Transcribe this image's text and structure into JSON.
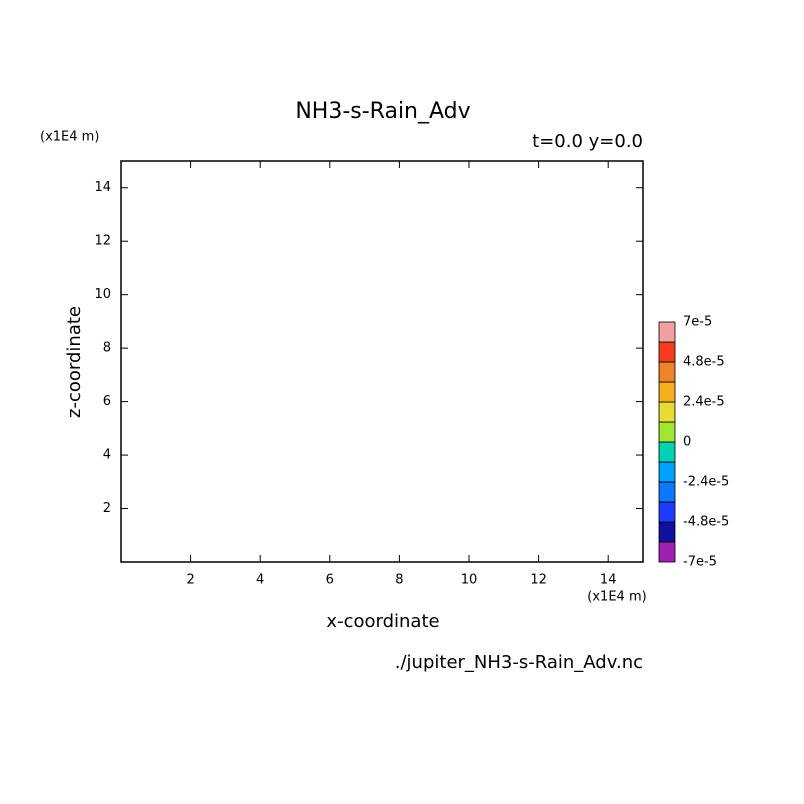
{
  "chart_data": {
    "type": "contour",
    "title": "NH3-s-Rain_Adv",
    "subtitle": "t=0.0 y=0.0",
    "x_label": "x-coordinate",
    "y_label": "z-coordinate",
    "x_unit": "(x1E4 m)",
    "y_unit": "(x1E4 m)",
    "source": "./jupiter_NH3-s-Rain_Adv.nc",
    "xlim": [
      0,
      15
    ],
    "ylim": [
      0,
      15
    ],
    "xticks": [
      2,
      4,
      6,
      8,
      10,
      12,
      14
    ],
    "yticks": [
      2,
      4,
      6,
      8,
      10,
      12,
      14
    ],
    "colorbar": {
      "levels": [
        {
          "value": -7e-05,
          "label": "-7e-5"
        },
        {
          "value": -4.8e-05,
          "label": "-4.8e-5"
        },
        {
          "value": -2.4e-05,
          "label": "-2.4e-5"
        },
        0,
        {
          "value": 2.4e-05,
          "label": "2.4e-5"
        },
        {
          "value": 4.8e-05,
          "label": "4.8e-5"
        },
        {
          "value": 7e-05,
          "label": "7e-5"
        }
      ],
      "colors": [
        "#a01eb4",
        "#1010a0",
        "#1e3cff",
        "#0a78ff",
        "#00a0ff",
        "#00d2b4",
        "#a0e632",
        "#e6dc32",
        "#f5af1e",
        "#f08228",
        "#f53c1e",
        "#f0a0a0"
      ]
    }
  }
}
